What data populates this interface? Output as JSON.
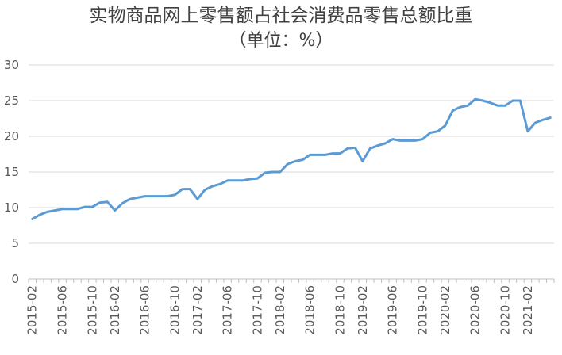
{
  "chart_data": {
    "type": "line",
    "title": "实物商品网上零售额占社会消费品零售总额比重",
    "subtitle": "（单位：%）",
    "xlabel": "",
    "ylabel": "",
    "ylim": [
      0,
      30
    ],
    "yticks": [
      "0",
      "5",
      "10",
      "15",
      "20",
      "25",
      "30"
    ],
    "grid": true,
    "legend": "none",
    "line_color": "#5B9BD5",
    "x_tick_labels": [
      "2015-02",
      "2015-06",
      "2015-10",
      "2016-02",
      "2016-06",
      "2016-10",
      "2017-02",
      "2017-06",
      "2017-10",
      "2018-02",
      "2018-06",
      "2018-10",
      "2019-02",
      "2019-06",
      "2019-10",
      "2020-02",
      "2020-06",
      "2020-10",
      "2021-02"
    ],
    "x": [
      "2015-02",
      "2015-03",
      "2015-04",
      "2015-05",
      "2015-06",
      "2015-07",
      "2015-08",
      "2015-09",
      "2015-10",
      "2015-11",
      "2015-12",
      "2016-02",
      "2016-03",
      "2016-04",
      "2016-05",
      "2016-06",
      "2016-07",
      "2016-08",
      "2016-09",
      "2016-10",
      "2016-11",
      "2016-12",
      "2017-02",
      "2017-03",
      "2017-04",
      "2017-05",
      "2017-06",
      "2017-07",
      "2017-08",
      "2017-09",
      "2017-10",
      "2017-11",
      "2017-12",
      "2018-02",
      "2018-03",
      "2018-04",
      "2018-05",
      "2018-06",
      "2018-07",
      "2018-08",
      "2018-09",
      "2018-10",
      "2018-11",
      "2018-12",
      "2019-02",
      "2019-03",
      "2019-04",
      "2019-05",
      "2019-06",
      "2019-07",
      "2019-08",
      "2019-09",
      "2019-10",
      "2019-11",
      "2019-12",
      "2020-02",
      "2020-03",
      "2020-04",
      "2020-05",
      "2020-06",
      "2020-07",
      "2020-08",
      "2020-09",
      "2020-10",
      "2020-11",
      "2020-12",
      "2021-02",
      "2021-03",
      "2021-04",
      "2021-05"
    ],
    "values": [
      8.4,
      9.0,
      9.4,
      9.6,
      9.8,
      9.8,
      9.8,
      10.1,
      10.1,
      10.7,
      10.8,
      9.6,
      10.6,
      11.2,
      11.4,
      11.6,
      11.6,
      11.6,
      11.6,
      11.8,
      12.6,
      12.6,
      11.2,
      12.5,
      13.0,
      13.3,
      13.8,
      13.8,
      13.8,
      14.0,
      14.1,
      14.9,
      15.0,
      15.0,
      16.1,
      16.5,
      16.7,
      17.4,
      17.4,
      17.4,
      17.6,
      17.6,
      18.3,
      18.4,
      16.5,
      18.3,
      18.7,
      19.0,
      19.6,
      19.4,
      19.4,
      19.4,
      19.6,
      20.5,
      20.7,
      21.5,
      23.6,
      24.1,
      24.3,
      25.2,
      25.0,
      24.7,
      24.3,
      24.3,
      25.0,
      25.0,
      20.7,
      21.9,
      22.3,
      22.6
    ]
  }
}
